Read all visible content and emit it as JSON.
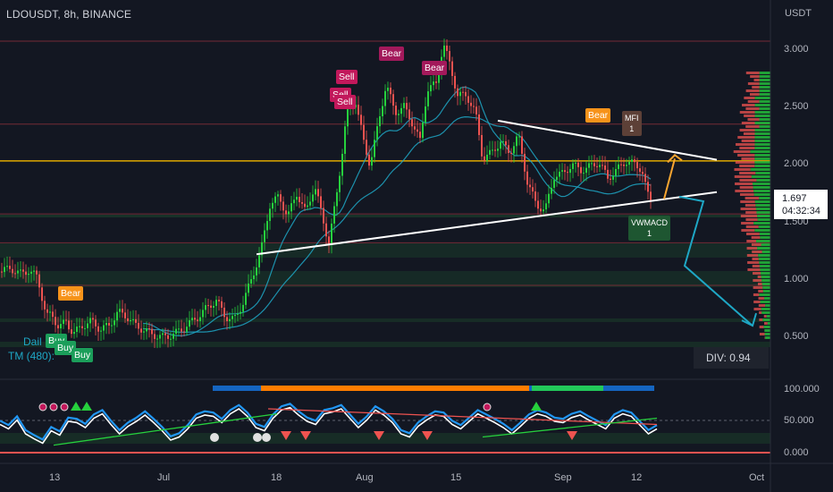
{
  "header": {
    "title": "LDOUSDT, 8h, BINANCE",
    "currency": "USDT"
  },
  "price_axis": {
    "ticks": [
      "3.000",
      "2.500",
      "2.000",
      "1.500",
      "1.000",
      "0.500"
    ]
  },
  "oscillator_axis": {
    "ticks": [
      "100.000",
      "50.000",
      "0.000"
    ]
  },
  "date_axis": {
    "ticks": [
      "13",
      "Jul",
      "18",
      "Aug",
      "15",
      "Sep",
      "12",
      "Oct"
    ]
  },
  "current_price": {
    "value": "1.697",
    "countdown": "04:32:34"
  },
  "divergence": {
    "label": "DIV: 0.94"
  },
  "legend": {
    "line1": "Dail",
    "line2": "TM (480): "
  },
  "signals": {
    "bear_1": "Bear",
    "bear_2": "Bear",
    "bear_3": "Bear",
    "bear_4": "Bear",
    "sell_1": "Sell",
    "sell_2": "Sell",
    "sell_3": "Sell",
    "buy_1": "Buy",
    "buy_2": "Buy",
    "buy_3": "Buy",
    "mfi": "MFI",
    "mfi_count": "1",
    "vwmacd": "VWMACD",
    "vwmacd_count": "1"
  },
  "colors": {
    "background": "#131722",
    "bull": "#26d03d",
    "bear": "#ef5350",
    "trendline": "#ffffff",
    "horizontal_level": "#e0a800",
    "moving_average": "#1ea7c5",
    "forecast_up": "#f7a531",
    "forecast_down": "#1ea7c5"
  },
  "chart_data": [
    {
      "type": "candlestick",
      "title": "LDOUSDT, 8h, BINANCE",
      "y_unit": "USDT",
      "ylim": [
        0.3,
        3.2
      ],
      "x_ticks": [
        "13",
        "Jul",
        "18",
        "Aug",
        "15",
        "Sep",
        "12",
        "Oct"
      ],
      "y_ticks": [
        3.0,
        2.5,
        2.0,
        1.5,
        1.0,
        0.5
      ],
      "close_path": [
        [
          0,
          1.07
        ],
        [
          12,
          1.1
        ],
        [
          22,
          1.05
        ],
        [
          32,
          1.08
        ],
        [
          42,
          1.02
        ],
        [
          52,
          0.68
        ],
        [
          58,
          0.7
        ],
        [
          66,
          0.58
        ],
        [
          74,
          0.64
        ],
        [
          82,
          0.53
        ],
        [
          92,
          0.6
        ],
        [
          102,
          0.64
        ],
        [
          112,
          0.57
        ],
        [
          122,
          0.6
        ],
        [
          132,
          0.72
        ],
        [
          142,
          0.68
        ],
        [
          152,
          0.6
        ],
        [
          162,
          0.56
        ],
        [
          172,
          0.52
        ],
        [
          182,
          0.5
        ],
        [
          192,
          0.52
        ],
        [
          202,
          0.56
        ],
        [
          212,
          0.62
        ],
        [
          222,
          0.68
        ],
        [
          232,
          0.76
        ],
        [
          242,
          0.82
        ],
        [
          252,
          0.68
        ],
        [
          262,
          0.65
        ],
        [
          272,
          0.8
        ],
        [
          282,
          1.02
        ],
        [
          292,
          1.25
        ],
        [
          302,
          1.65
        ],
        [
          312,
          1.72
        ],
        [
          322,
          1.55
        ],
        [
          332,
          1.75
        ],
        [
          342,
          1.58
        ],
        [
          352,
          1.82
        ],
        [
          362,
          1.5
        ],
        [
          368,
          1.32
        ],
        [
          376,
          1.7
        ],
        [
          382,
          2.05
        ],
        [
          388,
          2.45
        ],
        [
          398,
          2.55
        ],
        [
          408,
          2.15
        ],
        [
          414,
          2.0
        ],
        [
          422,
          2.3
        ],
        [
          432,
          2.7
        ],
        [
          442,
          2.45
        ],
        [
          452,
          2.5
        ],
        [
          462,
          2.35
        ],
        [
          470,
          2.2
        ],
        [
          478,
          2.65
        ],
        [
          488,
          2.7
        ],
        [
          496,
          3.05
        ],
        [
          504,
          2.85
        ],
        [
          512,
          2.6
        ],
        [
          522,
          2.6
        ],
        [
          532,
          2.45
        ],
        [
          540,
          2.05
        ],
        [
          550,
          2.1
        ],
        [
          560,
          2.2
        ],
        [
          570,
          2.1
        ],
        [
          580,
          2.25
        ],
        [
          590,
          1.85
        ],
        [
          600,
          1.65
        ],
        [
          610,
          1.6
        ],
        [
          620,
          1.9
        ],
        [
          630,
          1.92
        ],
        [
          640,
          2.0
        ],
        [
          650,
          1.95
        ],
        [
          660,
          1.98
        ],
        [
          670,
          2.02
        ],
        [
          680,
          1.88
        ],
        [
          690,
          1.95
        ],
        [
          700,
          2.03
        ],
        [
          710,
          2.0
        ],
        [
          718,
          1.96
        ],
        [
          724,
          1.75
        ],
        [
          730,
          1.65
        ]
      ],
      "horizontal_levels": [
        2.03,
        3.07,
        2.35,
        1.57,
        1.32,
        0.95
      ],
      "trendlines": [
        {
          "from": [
            557,
            2.38
          ],
          "to": [
            802,
            2.04
          ]
        },
        {
          "from": [
            287,
            1.22
          ],
          "to": [
            802,
            1.76
          ]
        }
      ],
      "forecast": {
        "up": [
          [
            743,
            1.7
          ],
          [
            755,
            2.05
          ]
        ],
        "down": [
          [
            760,
            1.72
          ],
          [
            787,
            1.68
          ],
          [
            766,
            1.12
          ],
          [
            842,
            0.6
          ]
        ]
      }
    },
    {
      "type": "line",
      "title": "oscillator",
      "ylim": [
        0,
        100
      ],
      "y_ticks": [
        100,
        50,
        0
      ],
      "series": [
        {
          "values_start_x": 0,
          "values_end_x": 735,
          "values": [
            45,
            38,
            52,
            30,
            22,
            15,
            35,
            28,
            50,
            48,
            40,
            55,
            62,
            45,
            30,
            42,
            50,
            60,
            48,
            35,
            20,
            25,
            38,
            55,
            60,
            58,
            48,
            62,
            70,
            58,
            40,
            35,
            55,
            68,
            72,
            60,
            50,
            45,
            62,
            65,
            70,
            55,
            40,
            52,
            68,
            60,
            48,
            30,
            25,
            42,
            52,
            60,
            58,
            45,
            38,
            50,
            62,
            55,
            48,
            40,
            30,
            42,
            55,
            62,
            58,
            50,
            48,
            56,
            60,
            52,
            45,
            38,
            55,
            62,
            58,
            44,
            30,
            38
          ]
        }
      ]
    }
  ]
}
